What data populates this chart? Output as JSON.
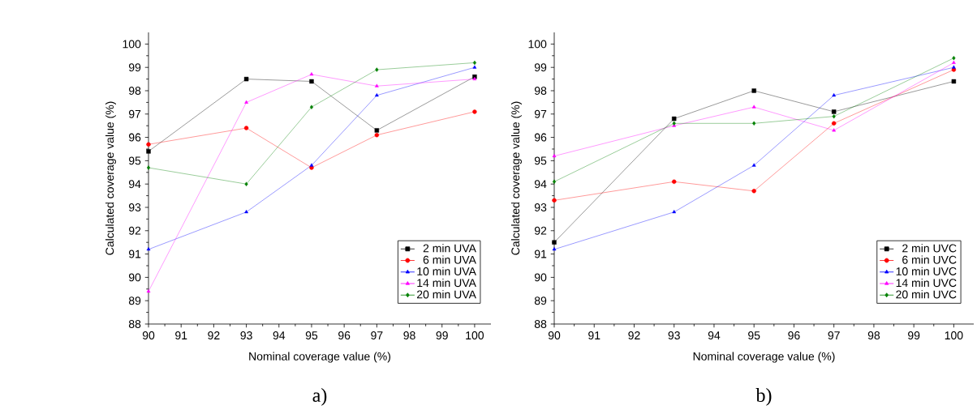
{
  "chart_data": [
    {
      "type": "line",
      "xlabel": "Nominal coverage value (%)",
      "ylabel": "Calculated coverage value (%)",
      "annotations": [
        "a)"
      ],
      "x": [
        90,
        93,
        95,
        97,
        100
      ],
      "xlim": [
        90,
        100.5
      ],
      "ylim": [
        88,
        100.5
      ],
      "xticks": [
        90,
        91,
        92,
        93,
        94,
        95,
        96,
        97,
        98,
        99,
        100
      ],
      "yticks": [
        88,
        89,
        90,
        91,
        92,
        93,
        94,
        95,
        96,
        97,
        98,
        99,
        100
      ],
      "grid": false,
      "legend": "bottom right",
      "line_style": "solid",
      "series": [
        {
          "name": "2 min UVA",
          "color": "#000000",
          "marker": "square",
          "values": [
            95.4,
            98.5,
            98.4,
            96.3,
            98.6
          ]
        },
        {
          "name": "6 min UVA",
          "color": "#ff0000",
          "marker": "circle",
          "values": [
            95.7,
            96.4,
            94.7,
            96.1,
            97.1
          ]
        },
        {
          "name": "10 min UVA",
          "color": "#0000ff",
          "marker": "triangle",
          "values": [
            91.2,
            92.8,
            94.8,
            97.8,
            99.0
          ]
        },
        {
          "name": "14 min UVA",
          "color": "#ff00ff",
          "marker": "triangle",
          "values": [
            89.4,
            97.5,
            98.7,
            98.2,
            98.5
          ]
        },
        {
          "name": "20 min UVA",
          "color": "#008000",
          "marker": "diamond",
          "values": [
            94.7,
            94.0,
            97.3,
            98.9,
            99.2
          ]
        }
      ]
    },
    {
      "type": "line",
      "xlabel": "Nominal coverage value (%)",
      "ylabel": "Calculated coverage value (%)",
      "annotations": [
        "b)"
      ],
      "x": [
        90,
        93,
        95,
        97,
        100
      ],
      "xlim": [
        90,
        100.5
      ],
      "ylim": [
        88,
        100.5
      ],
      "xticks": [
        90,
        91,
        92,
        93,
        94,
        95,
        96,
        97,
        98,
        99,
        100
      ],
      "yticks": [
        88,
        89,
        90,
        91,
        92,
        93,
        94,
        95,
        96,
        97,
        98,
        99,
        100
      ],
      "grid": false,
      "legend": "bottom right",
      "line_style": "solid",
      "series": [
        {
          "name": "2 min UVC",
          "color": "#000000",
          "marker": "square",
          "values": [
            91.5,
            96.8,
            98.0,
            97.1,
            98.4
          ]
        },
        {
          "name": "6 min UVC",
          "color": "#ff0000",
          "marker": "circle",
          "values": [
            93.3,
            94.1,
            93.7,
            96.6,
            98.9
          ]
        },
        {
          "name": "10 min UVC",
          "color": "#0000ff",
          "marker": "triangle",
          "values": [
            91.2,
            92.8,
            94.8,
            97.8,
            99.0
          ]
        },
        {
          "name": "14 min UVC",
          "color": "#ff00ff",
          "marker": "triangle",
          "values": [
            95.2,
            96.5,
            97.3,
            96.3,
            99.2
          ]
        },
        {
          "name": "20 min UVC",
          "color": "#008000",
          "marker": "diamond",
          "values": [
            94.1,
            96.6,
            96.6,
            96.9,
            99.4
          ]
        }
      ]
    }
  ]
}
